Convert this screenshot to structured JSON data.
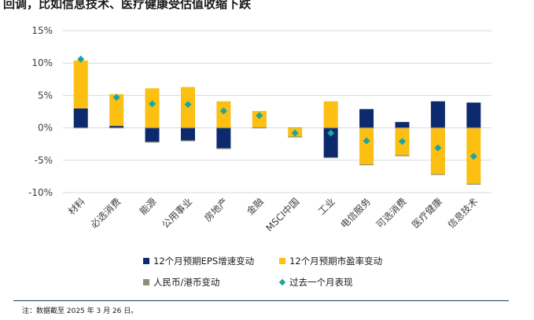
{
  "title": "回调，比如信息技术、医疗健康受估值收缩下跌",
  "note": "注：数据截至 2025 年 3 月 26 日。",
  "colors": {
    "eps": "#0e2a6e",
    "pe": "#fcbf12",
    "fx": "#8a8f7a",
    "past_month": "#1aa6a0",
    "grid": "#d9d9d9",
    "axis_text": "#404040"
  },
  "chart_data": {
    "type": "bar",
    "stacked": true,
    "title": "回调，比如信息技术、医疗健康受估值收缩下跌",
    "ylim": [
      -10,
      15
    ],
    "yticks": [
      -10,
      -5,
      0,
      5,
      10,
      15
    ],
    "ytick_labels": [
      "-10%",
      "-5%",
      "0%",
      "5%",
      "10%",
      "15%"
    ],
    "grid": true,
    "legend_position": "bottom",
    "categories": [
      "材料",
      "必选消费",
      "能源",
      "公用事业",
      "房地产",
      "金融",
      "MSCI中国",
      "工业",
      "电信服务",
      "可选消费",
      "医疗健康",
      "信息技术"
    ],
    "series": [
      {
        "name": "12个月预期EPS增速变动",
        "kind": "bar",
        "color_key": "eps",
        "values": [
          3.0,
          0.3,
          -2.2,
          -2.0,
          -3.2,
          0.0,
          0.0,
          -4.6,
          2.9,
          0.9,
          4.1,
          3.9
        ]
      },
      {
        "name": "12个月预期市盈率变动",
        "kind": "bar",
        "color_key": "pe",
        "values": [
          7.4,
          4.9,
          6.1,
          6.3,
          4.1,
          2.6,
          -1.4,
          4.1,
          -5.7,
          -4.3,
          -7.2,
          -8.7
        ]
      },
      {
        "name": "人民币/港币变动",
        "kind": "bar",
        "color_key": "fx",
        "values": [
          0,
          0,
          0,
          0,
          0,
          0,
          0,
          0,
          0,
          0,
          0,
          0
        ]
      },
      {
        "name": "过去一个月表现",
        "kind": "marker",
        "color_key": "past_month",
        "values": [
          10.6,
          4.7,
          3.7,
          3.6,
          2.6,
          1.9,
          -0.8,
          -0.8,
          -2.0,
          -2.1,
          -3.1,
          -4.4
        ]
      }
    ]
  }
}
